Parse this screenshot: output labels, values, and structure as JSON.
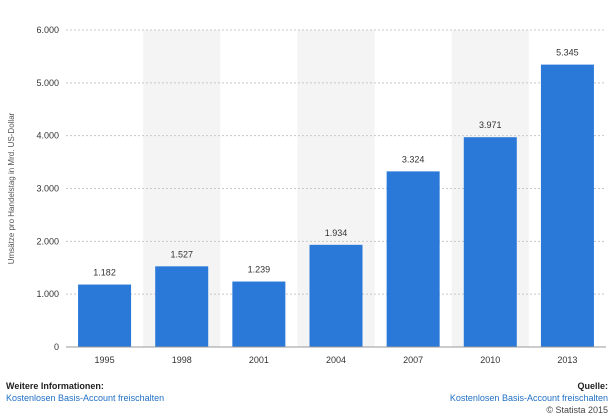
{
  "chart_data": {
    "type": "bar",
    "categories": [
      "1995",
      "1998",
      "2001",
      "2004",
      "2007",
      "2010",
      "2013"
    ],
    "values": [
      1182,
      1527,
      1239,
      1934,
      3324,
      3971,
      5345
    ],
    "value_labels": [
      "1.182",
      "1.527",
      "1.239",
      "1.934",
      "3.324",
      "3.971",
      "5.345"
    ],
    "ylabel": "Umsätze pro Handelstag in Mrd. US-Dollar",
    "ylim": [
      0,
      6000
    ],
    "yticks": [
      0,
      1000,
      2000,
      3000,
      4000,
      5000,
      6000
    ],
    "ytick_labels": [
      "0",
      "1.000",
      "2.000",
      "3.000",
      "4.000",
      "5.000",
      "6.000"
    ],
    "grid": true,
    "bar_color": "#2a78d8"
  },
  "footer": {
    "info_title": "Weitere Informationen:",
    "info_link": "Kostenlosen Basis-Account freischalten",
    "source_title": "Quelle:",
    "source_link": "Kostenlosen Basis-Account freischalten",
    "copyright": "© Statista 2015"
  }
}
